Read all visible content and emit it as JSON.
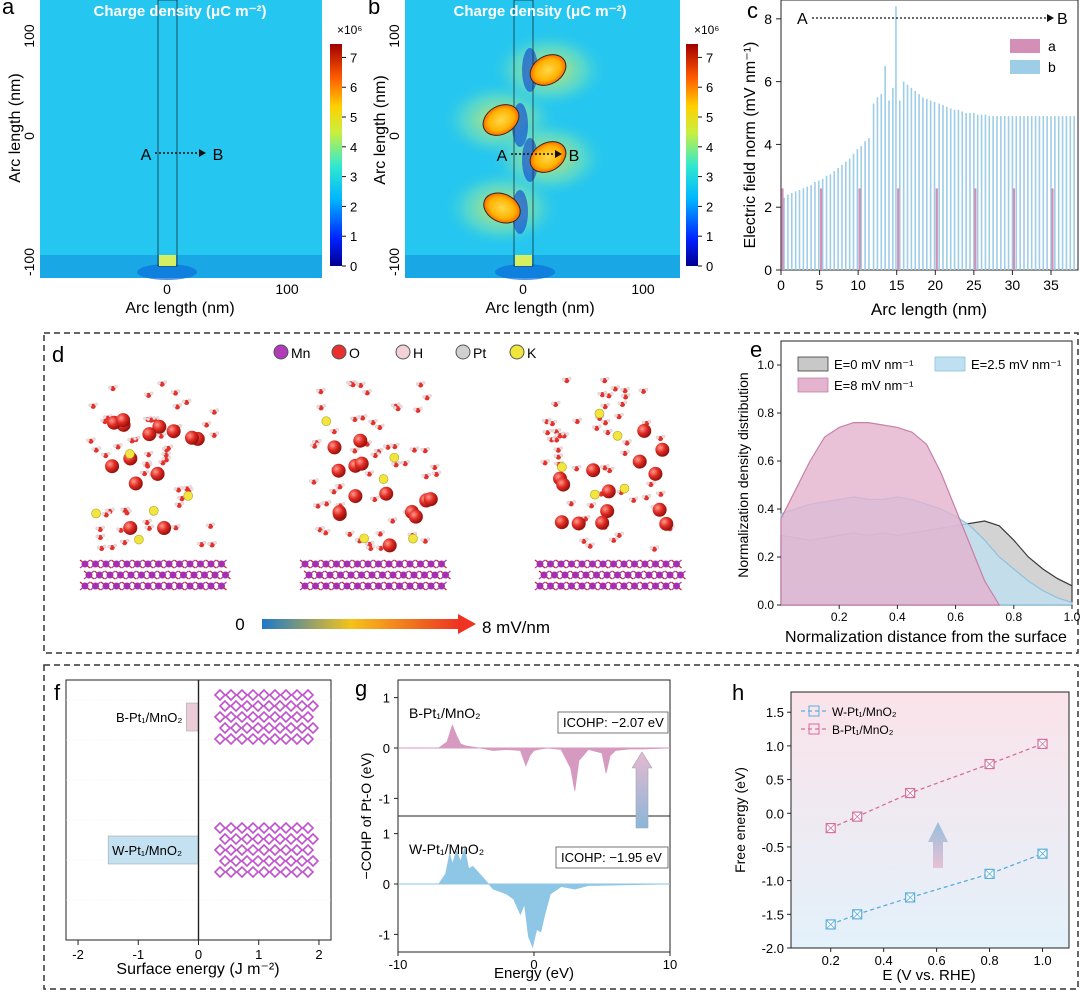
{
  "panel_letters": {
    "a": "a",
    "b": "b",
    "c": "c",
    "d": "d",
    "e": "e",
    "f": "f",
    "g": "g",
    "h": "h"
  },
  "panel_a": {
    "title": "Charge density (μC m⁻²)",
    "xlabel": "Arc length (nm)",
    "ylabel": "Arc length (nm)",
    "xticks": [
      "0",
      "100"
    ],
    "yticks": [
      "100",
      "0",
      "-100"
    ],
    "point_a": "A",
    "point_b": "B"
  },
  "panel_b": {
    "title": "Charge density (μC m⁻²)",
    "xlabel": "Arc length (nm)",
    "ylabel": "Arc length (nm)",
    "xticks": [
      "0",
      "100"
    ],
    "yticks": [
      "100",
      "0",
      "-100"
    ],
    "point_a": "A",
    "point_b": "B"
  },
  "colorbar": {
    "multiplier": "×10⁶",
    "ticks": [
      "7",
      "6",
      "5",
      "4",
      "3",
      "2",
      "1",
      "0"
    ]
  },
  "chart_data": [
    {
      "id": "c",
      "type": "bar",
      "title": "",
      "xlabel": "Arc length (nm)",
      "ylabel": "Electric field norm (mV nm⁻¹)",
      "xlim": [
        0,
        38.5
      ],
      "ylim": [
        0,
        8.6
      ],
      "xticks": [
        0,
        5,
        10,
        15,
        20,
        25,
        30,
        35
      ],
      "yticks": [
        0,
        2,
        4,
        6,
        8
      ],
      "arrow_start": "A",
      "arrow_end": "B",
      "legend": [
        "a",
        "b"
      ],
      "series": [
        {
          "name": "a",
          "color": "#d48fb6",
          "x": [
            0,
            5,
            10,
            15,
            20,
            25,
            30,
            35
          ],
          "values": [
            2.6,
            2.6,
            2.6,
            2.6,
            2.6,
            2.6,
            2.6,
            2.6
          ]
        },
        {
          "name": "b",
          "color": "#9ecde8",
          "x": [
            0.4,
            0.9,
            1.4,
            1.9,
            2.4,
            2.9,
            3.4,
            3.9,
            4.4,
            4.9,
            5.4,
            5.9,
            6.4,
            6.9,
            7.4,
            7.9,
            8.4,
            8.9,
            9.4,
            9.9,
            10.4,
            10.9,
            11.4,
            12.0,
            12.5,
            13.0,
            13.5,
            14.0,
            14.5,
            14.9,
            15.4,
            15.9,
            16.4,
            16.9,
            17.4,
            17.9,
            18.4,
            18.9,
            19.4,
            19.9,
            20.5,
            21.0,
            21.5,
            22.0,
            22.5,
            23.0,
            23.5,
            24.0,
            24.5,
            25.0,
            25.5,
            26.0,
            26.5,
            27.0,
            27.5,
            28.0,
            28.5,
            29.0,
            29.5,
            30.0,
            30.5,
            31.0,
            31.5,
            32.0,
            32.5,
            33.0,
            33.5,
            34.0,
            34.5,
            35.0,
            35.5,
            36.0,
            36.5,
            37.0,
            37.5,
            38.0
          ],
          "values": [
            2.3,
            2.4,
            2.45,
            2.5,
            2.55,
            2.6,
            2.65,
            2.7,
            2.8,
            2.85,
            2.9,
            3.0,
            3.05,
            3.15,
            3.25,
            3.35,
            3.45,
            3.55,
            3.7,
            3.85,
            3.95,
            4.1,
            4.2,
            5.3,
            5.5,
            5.6,
            6.5,
            5.4,
            5.8,
            8.4,
            5.4,
            6.0,
            5.9,
            5.8,
            5.7,
            5.6,
            5.5,
            5.45,
            5.4,
            5.35,
            5.3,
            5.25,
            5.2,
            5.15,
            5.1,
            5.1,
            5.05,
            5.0,
            5.0,
            5.0,
            4.95,
            4.95,
            4.95,
            4.9,
            4.9,
            4.9,
            4.9,
            4.9,
            4.9,
            4.9,
            4.9,
            4.9,
            4.9,
            4.9,
            4.9,
            4.9,
            4.9,
            4.9,
            4.9,
            4.9,
            4.9,
            4.9,
            4.9,
            4.9,
            4.9,
            4.9
          ]
        }
      ]
    },
    {
      "id": "e",
      "type": "area",
      "xlabel": "Normalization distance from the surface",
      "ylabel": "Normalization density distribution",
      "xlim": [
        0,
        1.0
      ],
      "ylim": [
        0,
        1.1
      ],
      "xticks": [
        0.2,
        0.4,
        0.6,
        0.8,
        1.0
      ],
      "yticks": [
        0.0,
        0.2,
        0.4,
        0.6,
        0.8,
        1.0
      ],
      "series": [
        {
          "name": "E=0 mV nm⁻¹",
          "color": "#c8c8c8",
          "edge": "#3a3a3a",
          "x": [
            0,
            0.05,
            0.1,
            0.15,
            0.2,
            0.25,
            0.3,
            0.35,
            0.4,
            0.45,
            0.5,
            0.55,
            0.6,
            0.65,
            0.7,
            0.75,
            0.8,
            0.85,
            0.9,
            0.95,
            1.0
          ],
          "values": [
            0.29,
            0.28,
            0.27,
            0.28,
            0.29,
            0.3,
            0.29,
            0.3,
            0.29,
            0.3,
            0.31,
            0.32,
            0.33,
            0.34,
            0.35,
            0.33,
            0.27,
            0.2,
            0.15,
            0.11,
            0.08
          ]
        },
        {
          "name": "E=2.5 mV nm⁻¹",
          "color": "#bfe0f0",
          "edge": "#8fc2de",
          "x": [
            0,
            0.05,
            0.1,
            0.15,
            0.2,
            0.25,
            0.3,
            0.35,
            0.4,
            0.45,
            0.5,
            0.55,
            0.6,
            0.65,
            0.7,
            0.75,
            0.8,
            0.85,
            0.9,
            0.95,
            1.0
          ],
          "values": [
            0.38,
            0.4,
            0.42,
            0.43,
            0.44,
            0.45,
            0.44,
            0.44,
            0.45,
            0.44,
            0.42,
            0.4,
            0.37,
            0.33,
            0.27,
            0.2,
            0.15,
            0.1,
            0.06,
            0.03,
            0.01
          ]
        },
        {
          "name": "E=8 mV nm⁻¹",
          "color": "#e4b3ce",
          "edge": "#c97fa8",
          "x": [
            0,
            0.05,
            0.1,
            0.15,
            0.2,
            0.25,
            0.3,
            0.35,
            0.4,
            0.45,
            0.5,
            0.55,
            0.6,
            0.65,
            0.7,
            0.75
          ],
          "values": [
            0.36,
            0.48,
            0.6,
            0.7,
            0.74,
            0.76,
            0.76,
            0.75,
            0.74,
            0.72,
            0.67,
            0.55,
            0.4,
            0.25,
            0.1,
            0.0
          ]
        }
      ]
    },
    {
      "id": "f",
      "type": "bar",
      "orientation": "horizontal",
      "xlabel": "Surface energy (J m⁻²)",
      "xlim": [
        -2.2,
        2.2
      ],
      "xticks": [
        -2,
        -1,
        0,
        1,
        2
      ],
      "categories": [
        "B-Pt₁/MnO₂",
        "W-Pt₁/MnO₂"
      ],
      "values": [
        -0.2,
        -1.5
      ],
      "colors": [
        "#eccbd9",
        "#c3e1f1"
      ]
    },
    {
      "id": "g_top",
      "type": "area",
      "label": "B-Pt₁/MnO₂",
      "annotation": "ICOHP: −2.07 eV",
      "ylabel": "−COHP of Pt-O (eV)",
      "xlim": [
        -10,
        10
      ],
      "ylim": [
        -1.35,
        1.35
      ],
      "yticks": [
        -1,
        0,
        1
      ],
      "color": "#d69ac0",
      "x": [
        -10,
        -7,
        -6.4,
        -6.0,
        -5.7,
        -5.4,
        -5,
        -4,
        -3,
        -2,
        -1,
        -0.6,
        -0.3,
        0,
        0.5,
        1,
        2,
        2.7,
        3.0,
        3.3,
        4,
        5,
        5.3,
        5.6,
        6,
        7,
        8,
        10
      ],
      "values": [
        0,
        0,
        0.12,
        0.45,
        0.25,
        0.08,
        0.04,
        0.0,
        -0.05,
        -0.03,
        -0.05,
        -0.35,
        -0.15,
        -0.05,
        -0.02,
        0,
        -0.03,
        -0.4,
        -0.85,
        -0.25,
        -0.03,
        -0.1,
        -0.5,
        -0.15,
        -0.05,
        -0.02,
        -0.02,
        0
      ]
    },
    {
      "id": "g_bottom",
      "type": "area",
      "label": "W-Pt₁/MnO₂",
      "annotation": "ICOHP: −1.95 eV",
      "xlabel": "Energy (eV)",
      "xlim": [
        -10,
        10
      ],
      "ylim": [
        -1.35,
        1.35
      ],
      "xticks": [
        -10,
        0,
        10
      ],
      "yticks": [
        -1,
        0,
        1
      ],
      "color": "#8ec6e6",
      "x": [
        -10,
        -7,
        -6.5,
        -6.2,
        -6.0,
        -5.7,
        -5.4,
        -5.1,
        -4.8,
        -4.5,
        -4,
        -3.5,
        -3,
        -2.5,
        -2,
        -1.5,
        -1,
        -0.7,
        -0.4,
        -0.1,
        0.2,
        0.5,
        0.8,
        1.2,
        2,
        3,
        4,
        6,
        10
      ],
      "values": [
        0,
        0,
        0.2,
        0.6,
        0.4,
        0.65,
        0.45,
        0.7,
        0.3,
        0.35,
        0.2,
        0.05,
        -0.1,
        -0.15,
        -0.2,
        -0.3,
        -0.6,
        -0.4,
        -1.05,
        -1.25,
        -0.9,
        -0.95,
        -0.6,
        -0.2,
        -0.05,
        -0.1,
        -0.03,
        -0.02,
        0
      ]
    },
    {
      "id": "h",
      "type": "line",
      "xlabel": "E (V vs. RHE)",
      "ylabel": "Free energy (eV)",
      "xlim": [
        0.05,
        1.1
      ],
      "ylim": [
        -2.0,
        1.8
      ],
      "xticks": [
        0.2,
        0.4,
        0.6,
        0.8,
        1.0
      ],
      "yticks": [
        -2.0,
        -1.5,
        -1.0,
        -0.5,
        0.0,
        0.5,
        1.0,
        1.5
      ],
      "series": [
        {
          "name": "W-Pt₁/MnO₂",
          "color": "#5aaedb",
          "x": [
            0.2,
            0.3,
            0.5,
            0.8,
            1.0
          ],
          "values": [
            -1.65,
            -1.5,
            -1.25,
            -0.9,
            -0.6
          ]
        },
        {
          "name": "B-Pt₁/MnO₂",
          "color": "#d46f9e",
          "x": [
            0.2,
            0.3,
            0.5,
            0.8,
            1.0
          ],
          "values": [
            -0.22,
            -0.05,
            0.3,
            0.73,
            1.03
          ]
        }
      ]
    }
  ],
  "panel_d": {
    "legend": [
      "Mn",
      "O",
      "H",
      "Pt",
      "K"
    ],
    "legend_colors": [
      "#b03ab8",
      "#e8312e",
      "#f2d2d6",
      "#d0d0d0",
      "#f0e63a"
    ],
    "scale_min": "0",
    "scale_max": "8 mV/nm"
  }
}
